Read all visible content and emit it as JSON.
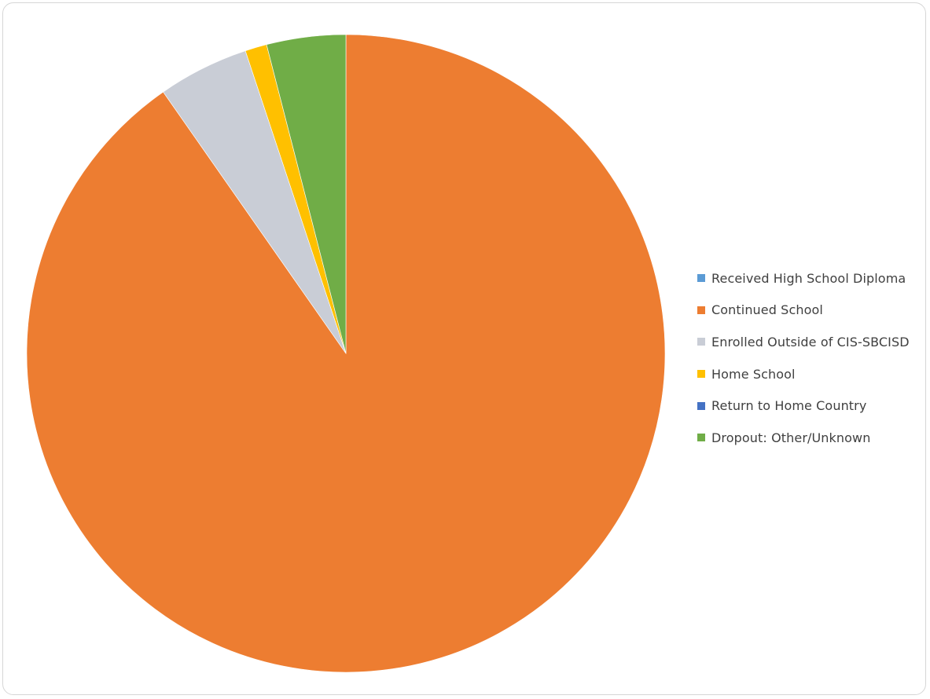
{
  "chart_data": {
    "type": "pie",
    "title": "",
    "start_angle_deg": 0,
    "direction": "clockwise",
    "slices": [
      {
        "label": "Received High School Diploma",
        "value": 0,
        "color": "#5B9BD5"
      },
      {
        "label": "Continued School",
        "value": 90.3,
        "color": "#ED7D31"
      },
      {
        "label": "Enrolled Outside of CIS-SBCISD",
        "value": 4.6,
        "color": "#C9CDD6"
      },
      {
        "label": "Home School",
        "value": 1.1,
        "color": "#FFC000"
      },
      {
        "label": "Return to Home Country",
        "value": 0,
        "color": "#4472C4"
      },
      {
        "label": "Dropout: Other/Unknown",
        "value": 4.0,
        "color": "#70AD47"
      }
    ],
    "legend": {
      "position": "right"
    }
  }
}
